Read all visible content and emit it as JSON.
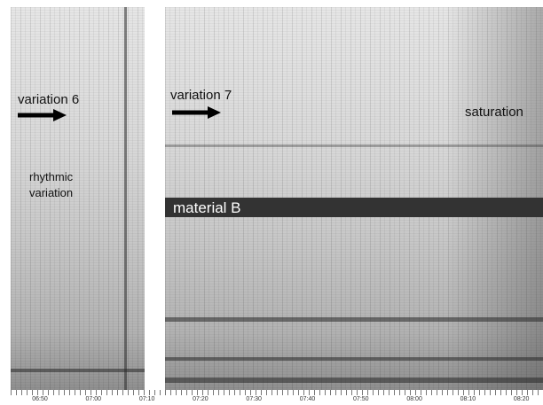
{
  "annotations": {
    "variation6": "variation 6",
    "rhythmic": [
      "rhythmic",
      "variation"
    ],
    "variation7": "variation 7",
    "saturation": "saturation",
    "material": "material B"
  },
  "axis": {
    "ticks": [
      "06:50",
      "07:00",
      "07:10",
      "07:20",
      "07:30",
      "07:40",
      "07:50",
      "08:00",
      "08:10",
      "08:20"
    ]
  }
}
